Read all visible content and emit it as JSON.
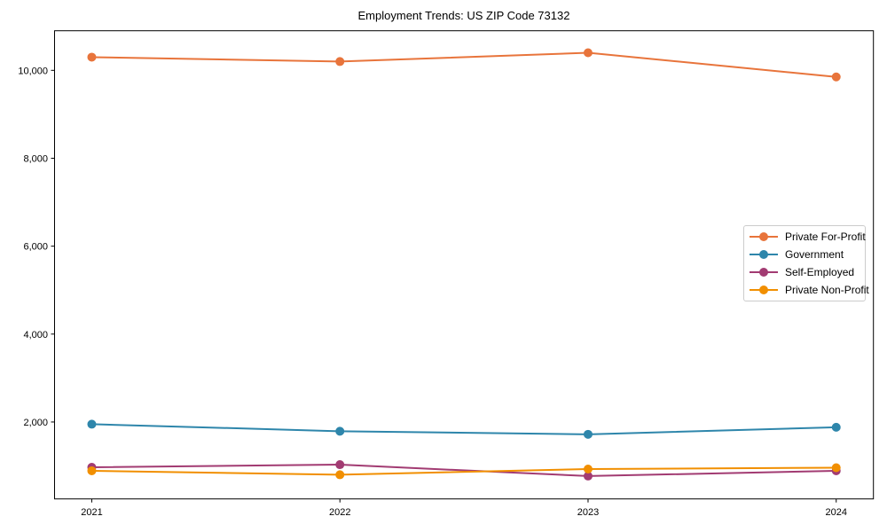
{
  "chart_data": {
    "type": "line",
    "title": "Employment Trends: US ZIP Code 73132",
    "x": [
      2021,
      2022,
      2023,
      2024
    ],
    "x_tick_labels": [
      "2021",
      "2022",
      "2023",
      "2024"
    ],
    "y_tick_values": [
      2000,
      4000,
      6000,
      8000,
      10000
    ],
    "y_tick_labels": [
      "2,000",
      "4,000",
      "6,000",
      "8,000",
      "10,000"
    ],
    "xlim": [
      2020.85,
      2024.15
    ],
    "ylim": [
      250,
      10900
    ],
    "grid": false,
    "legend_position": "center right",
    "marker": "circle",
    "axis_color": "#000000",
    "legend_border_color": "#cccccc",
    "series": [
      {
        "name": "Private For-Profit",
        "color": "#E8743B",
        "values": [
          10300,
          10200,
          10400,
          9850
        ]
      },
      {
        "name": "Government",
        "color": "#2E86AB",
        "values": [
          1950,
          1790,
          1720,
          1880
        ]
      },
      {
        "name": "Self-Employed",
        "color": "#A23B72",
        "values": [
          970,
          1030,
          770,
          890
        ]
      },
      {
        "name": "Private Non-Profit",
        "color": "#F18F01",
        "values": [
          890,
          800,
          930,
          960
        ]
      }
    ]
  }
}
